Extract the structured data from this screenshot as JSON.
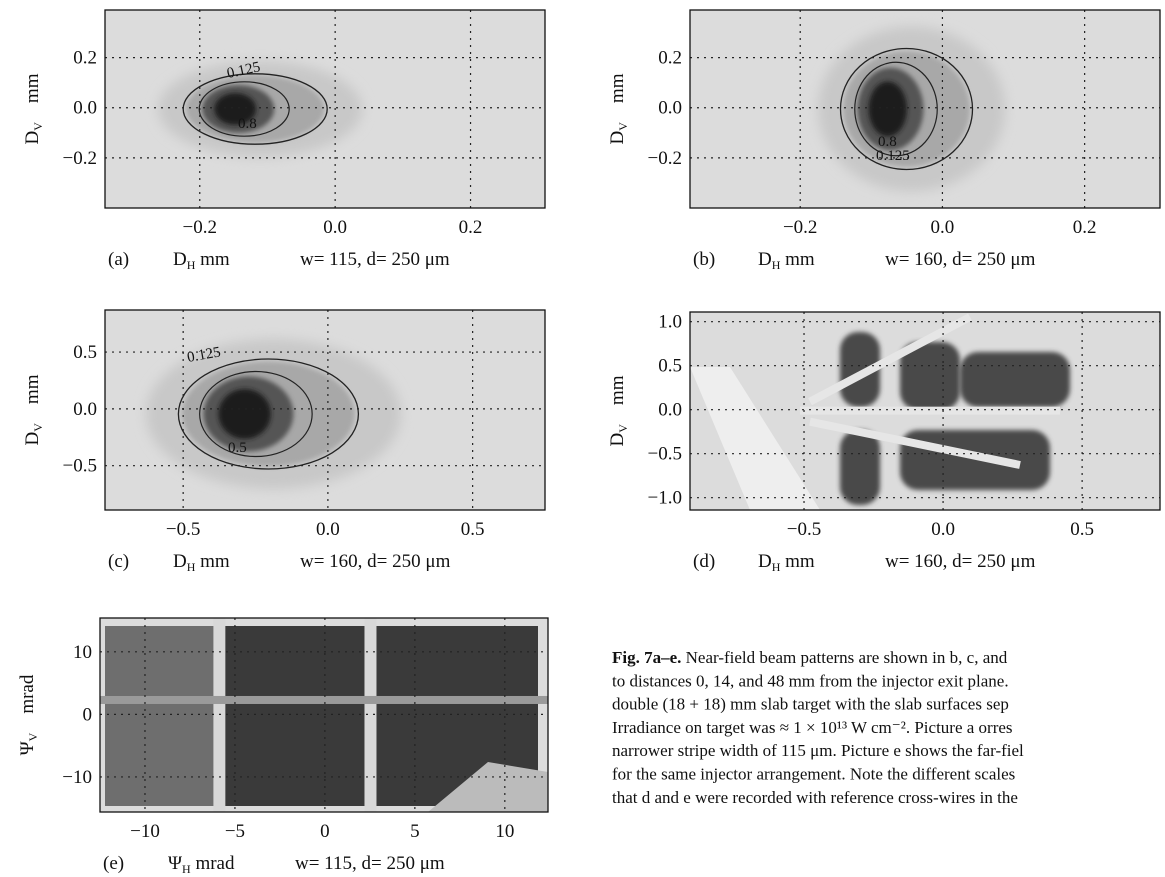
{
  "figure": {
    "panels": [
      {
        "id": "(a)",
        "xlabel": {
          "symbol": "D",
          "sub": "H",
          "unit": "mm"
        },
        "ylabel": {
          "symbol": "D",
          "sub": "V",
          "unit": "mm"
        },
        "params": "w= 115, d= 250 μm",
        "xlim": [
          -0.34,
          0.31
        ],
        "ylim": [
          -0.4,
          0.39
        ],
        "xticks": [
          {
            "value": -0.2,
            "label": "−0.2"
          },
          {
            "value": 0,
            "label": "0.0"
          },
          {
            "value": 0.2,
            "label": "0.2"
          }
        ],
        "yticks": [
          {
            "value": -0.2,
            "label": "−0.2"
          },
          {
            "value": 0,
            "label": "0.0"
          },
          {
            "value": 0.2,
            "label": "0.2"
          }
        ],
        "contour_labels": [
          "0.125",
          "0.8"
        ]
      },
      {
        "id": "(b)",
        "xlabel": {
          "symbol": "D",
          "sub": "H",
          "unit": "mm"
        },
        "ylabel": {
          "symbol": "D",
          "sub": "V",
          "unit": "mm"
        },
        "params": "w= 160, d= 250 μm",
        "xlim": [
          -0.355,
          0.306
        ],
        "ylim": [
          -0.4,
          0.39
        ],
        "xticks": [
          {
            "value": -0.2,
            "label": "−0.2"
          },
          {
            "value": 0,
            "label": "0.0"
          },
          {
            "value": 0.2,
            "label": "0.2"
          }
        ],
        "yticks": [
          {
            "value": -0.2,
            "label": "−0.2"
          },
          {
            "value": 0,
            "label": "0.0"
          },
          {
            "value": 0.2,
            "label": "0.2"
          }
        ],
        "contour_labels": [
          "0.125",
          "0.8"
        ]
      },
      {
        "id": "(c)",
        "xlabel": {
          "symbol": "D",
          "sub": "H",
          "unit": "mm"
        },
        "ylabel": {
          "symbol": "D",
          "sub": "V",
          "unit": "mm"
        },
        "params": "w= 160, d= 250 μm",
        "xlim": [
          -0.77,
          0.75
        ],
        "ylim": [
          -0.89,
          0.87
        ],
        "xticks": [
          {
            "value": -0.5,
            "label": "−0.5"
          },
          {
            "value": 0,
            "label": "0.0"
          },
          {
            "value": 0.5,
            "label": "0.5"
          }
        ],
        "yticks": [
          {
            "value": -0.5,
            "label": "−0.5"
          },
          {
            "value": 0,
            "label": "0.0"
          },
          {
            "value": 0.5,
            "label": "0.5"
          }
        ],
        "contour_labels": [
          "0.125",
          "0.5"
        ]
      },
      {
        "id": "(d)",
        "xlabel": {
          "symbol": "D",
          "sub": "H",
          "unit": "mm"
        },
        "ylabel": {
          "symbol": "D",
          "sub": "V",
          "unit": "mm"
        },
        "params": "w= 160, d= 250 μm",
        "xlim": [
          -0.91,
          0.78
        ],
        "ylim": [
          -1.14,
          1.11
        ],
        "xticks": [
          {
            "value": -0.5,
            "label": "−0.5"
          },
          {
            "value": 0,
            "label": "0.0"
          },
          {
            "value": 0.5,
            "label": "0.5"
          }
        ],
        "yticks": [
          {
            "value": -1,
            "label": "−1.0"
          },
          {
            "value": -0.5,
            "label": "−0.5"
          },
          {
            "value": 0,
            "label": "0.0"
          },
          {
            "value": 0.5,
            "label": "0.5"
          },
          {
            "value": 1,
            "label": "1.0"
          }
        ],
        "contour_labels": []
      },
      {
        "id": "(e)",
        "xlabel": {
          "symbol": "Ψ",
          "sub": "H",
          "unit": "mrad"
        },
        "ylabel": {
          "symbol": "Ψ",
          "sub": "V",
          "unit": "mrad"
        },
        "params": "w= 115, d= 250 μm",
        "xlim": [
          -12.5,
          12.4
        ],
        "ylim": [
          -15.6,
          15.4
        ],
        "xticks": [
          {
            "value": -10,
            "label": "−10"
          },
          {
            "value": -5,
            "label": "−5"
          },
          0,
          5,
          10
        ],
        "yticks": [
          {
            "value": -10,
            "label": "−10"
          },
          0,
          10
        ],
        "contour_labels": []
      }
    ],
    "caption": {
      "label": "Fig. 7a–e.",
      "lines": [
        "Near-field beam patterns are shown in b, c, and",
        "to distances 0, 14, and 48 mm from the injector exit plane.",
        "double (18 + 18) mm slab target with the slab surfaces sep",
        "Irradiance on target was ≈ 1 × 10¹³ W cm⁻². Picture a orres",
        "narrower stripe width of 115 μm. Picture e shows the far-fiel",
        "for the same injector arrangement. Note the different scales",
        "that d and e were recorded with reference cross-wires in the"
      ]
    }
  }
}
